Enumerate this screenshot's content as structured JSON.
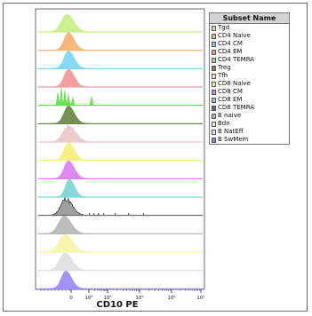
{
  "chart_data": {
    "type": "histogram-overlay",
    "xlabel": "CD10 PE",
    "x_scale": "biexponential",
    "x_ticks": [
      {
        "value": 0,
        "label": "0"
      },
      {
        "value": 1000,
        "label": "10³"
      },
      {
        "value": 10000,
        "label": "10⁴"
      },
      {
        "value": 100000,
        "label": "10⁵"
      },
      {
        "value": 1000000,
        "label": "10⁶"
      },
      {
        "value": 10000000,
        "label": "10⁷"
      }
    ],
    "legend": {
      "title": "Subset Name",
      "position": "top-right",
      "entries": [
        {
          "name": "Tgd",
          "color": "#bfef7a"
        },
        {
          "name": "CD4 Naive",
          "color": "#f7b06e"
        },
        {
          "name": "CD4 CM",
          "color": "#6fd0ef"
        },
        {
          "name": "CD4 EM",
          "color": "#f29696"
        },
        {
          "name": "CD4 TEMRA",
          "color": "#8ae680"
        },
        {
          "name": "Treg",
          "color": "#6e8a4c"
        },
        {
          "name": "Tfh",
          "color": "#fde1b0"
        },
        {
          "name": "CD8 Naive",
          "color": "#f4f27c"
        },
        {
          "name": "CD8 CM",
          "color": "#d77ef0"
        },
        {
          "name": "CD8 EM",
          "color": "#79d3d3"
        },
        {
          "name": "CD8 TEMRA",
          "color": "#6a6a6a"
        },
        {
          "name": "B naive",
          "color": "#b5b5b5"
        },
        {
          "name": "Bdn",
          "color": "#f8f3a4"
        },
        {
          "name": "B NatEff",
          "color": "#e3e3e3"
        },
        {
          "name": "B SwMem",
          "color": "#8d7df0"
        }
      ]
    },
    "series": [
      {
        "name": "Tgd",
        "color": "#c8f08a",
        "peak_x": -5,
        "width": 11,
        "shape": "smooth"
      },
      {
        "name": "CD4 Naive",
        "color": "#f7b574",
        "peak_x": -3,
        "width": 9,
        "shape": "smooth"
      },
      {
        "name": "CD4 CM",
        "color": "#7fd6f2",
        "peak_x": -3,
        "width": 9,
        "shape": "smooth"
      },
      {
        "name": "CD4 EM",
        "color": "#f39b9b",
        "peak_x": -3,
        "width": 9,
        "shape": "smooth"
      },
      {
        "name": "CD4 TEMRA",
        "color": "#63e04d",
        "peak_x": -5,
        "width": 10,
        "shape": "spiky"
      },
      {
        "name": "Treg",
        "color": "#6e8a4c",
        "peak_x": -3,
        "width": 9,
        "shape": "smooth"
      },
      {
        "name": "Tfh",
        "color": "#e9c9c9",
        "peak_x": -3,
        "width": 11,
        "shape": "ragged"
      },
      {
        "name": "CD8 Naive",
        "color": "#f5f17a",
        "peak_x": -3,
        "width": 9,
        "shape": "smooth"
      },
      {
        "name": "CD8 CM",
        "color": "#dc82f2",
        "peak_x": -3,
        "width": 9,
        "shape": "smooth"
      },
      {
        "name": "CD8 EM",
        "color": "#7fd6d6",
        "peak_x": -2,
        "width": 8,
        "shape": "smooth"
      },
      {
        "name": "CD8 TEMRA",
        "color": "#9a9a9a",
        "peak_x": -6,
        "width": 10,
        "shape": "ragged"
      },
      {
        "name": "B naive",
        "color": "#b8b8b8",
        "peak_x": -8,
        "width": 11,
        "shape": "smooth"
      },
      {
        "name": "Bdn",
        "color": "#f8f6a8",
        "peak_x": -7,
        "width": 12,
        "shape": "smooth"
      },
      {
        "name": "B NatEff",
        "color": "#e0e0e0",
        "peak_x": -7,
        "width": 11,
        "shape": "smooth"
      },
      {
        "name": "B SwMem",
        "color": "#9d8cf2",
        "peak_x": -6,
        "width": 9,
        "shape": "smooth"
      }
    ]
  }
}
